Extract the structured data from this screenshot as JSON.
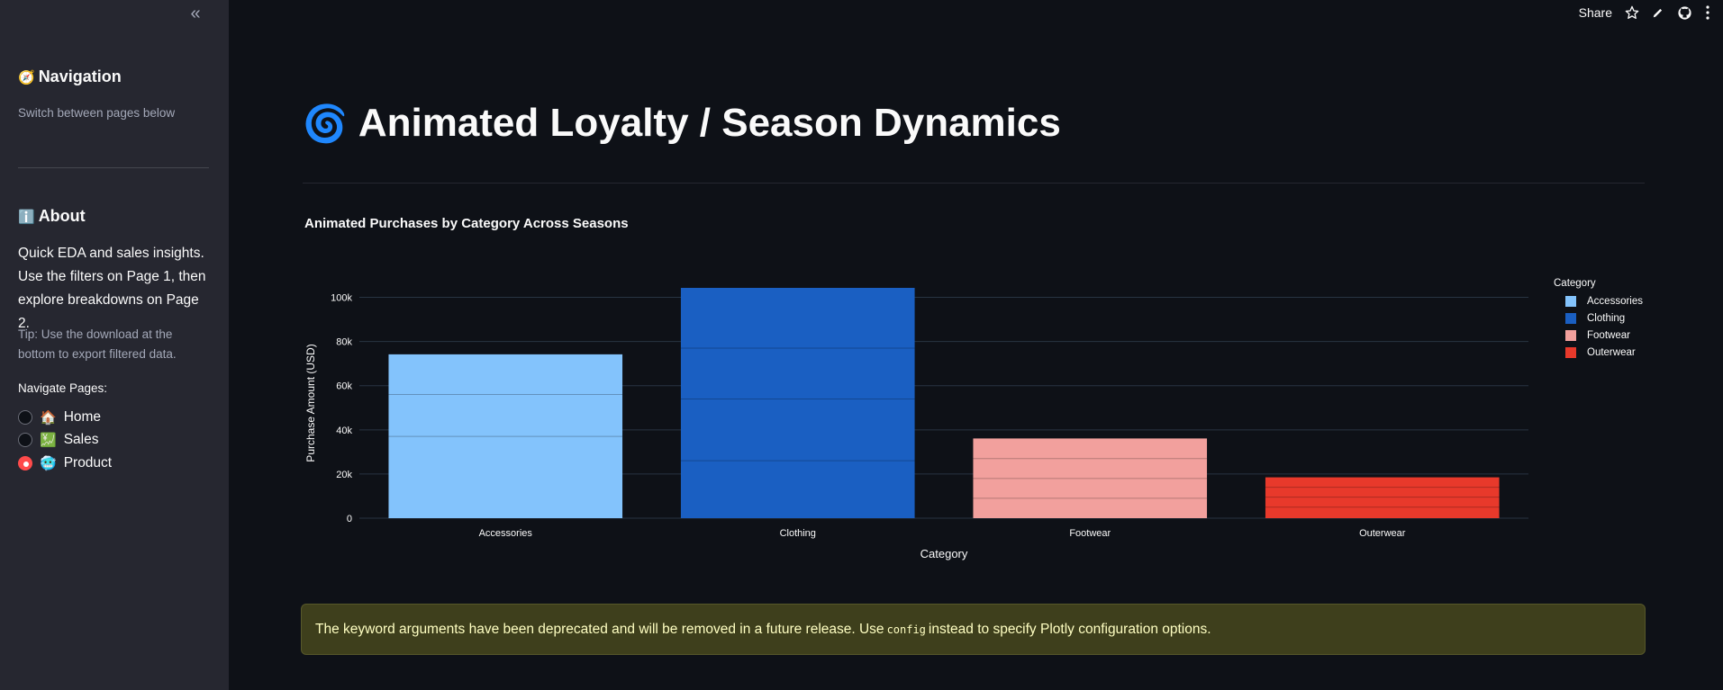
{
  "sidebar": {
    "nav_emoji": "🧭",
    "nav_heading": "Navigation",
    "nav_caption": "Switch between pages below",
    "about_emoji": "ℹ️",
    "about_heading": "About",
    "about_text": "Quick EDA and sales insights. Use the filters on Page 1, then explore breakdowns on Page 2.",
    "tip": "Tip: Use the download at the bottom to export filtered data.",
    "radio_label": "Navigate Pages:",
    "pages": [
      {
        "emoji": "🏠",
        "label": "Home",
        "selected": false
      },
      {
        "emoji": "💹",
        "label": "Sales",
        "selected": false
      },
      {
        "emoji": "🥶",
        "label": "Product",
        "selected": true
      }
    ],
    "collapse_icon": "double-chevron-left"
  },
  "toolbar": {
    "share_label": "Share",
    "icons": [
      "star-icon",
      "pencil-icon",
      "github-icon",
      "more-vertical-icon"
    ]
  },
  "page": {
    "title_emoji": "🌀",
    "title": "Animated Loyalty / Season Dynamics"
  },
  "chart_data": {
    "type": "bar",
    "title": "Animated Purchases by Category Across Seasons",
    "xlabel": "Category",
    "ylabel": "Purchase Amount (USD)",
    "categories": [
      "Accessories",
      "Clothing",
      "Footwear",
      "Outerwear"
    ],
    "values": [
      74200,
      104300,
      36100,
      18500
    ],
    "segments": [
      [
        37000,
        56000
      ],
      [
        26000,
        54000,
        77000
      ],
      [
        9000,
        18000,
        27000
      ],
      [
        5000,
        9500,
        14000
      ]
    ],
    "colors": {
      "Accessories": "#83c3fc",
      "Clothing": "#1a5fc2",
      "Footwear": "#f2a09d",
      "Outerwear": "#e8392b"
    },
    "ylim": [
      0,
      104300
    ],
    "yticks": [
      0,
      20000,
      40000,
      60000,
      80000,
      100000
    ],
    "ytick_labels": [
      "0",
      "20k",
      "40k",
      "60k",
      "80k",
      "100k"
    ],
    "legend_title": "Category",
    "legend": [
      "Accessories",
      "Clothing",
      "Footwear",
      "Outerwear"
    ],
    "legend_position": "top-right",
    "grid": true
  },
  "alert": {
    "before": "The keyword arguments have been deprecated and will be removed in a future release. Use",
    "code": "config",
    "after": "instead to specify Plotly configuration options."
  }
}
